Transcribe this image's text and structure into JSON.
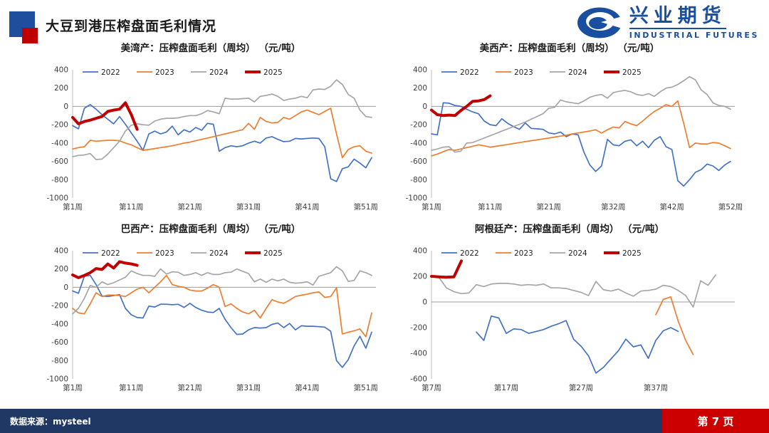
{
  "header": {
    "title": "大豆到港压榨盘面毛利情况",
    "logo_cn": "兴业期货",
    "logo_en": "INDUSTRIAL FUTURES"
  },
  "footer": {
    "source": "数据来源：mysteel",
    "page": "第 7 页"
  },
  "colors": {
    "series": {
      "2022": "#4472C4",
      "2023": "#ED7D31",
      "2024": "#A6A6A6",
      "2025": "#C00000"
    },
    "navy": "#1F3864",
    "accent_red": "#CC0000",
    "logo_blue": "#1A4E9E",
    "header_square_blue": "#1F4E9F",
    "header_square_red": "#C00000",
    "axis_text": "#404040",
    "zero_line": "#9C9C9C",
    "axis_line": "#BFBFBF"
  },
  "chart_data": [
    {
      "id": "us-gulf",
      "type": "line",
      "title": "美湾产：压榨盘面毛利（周均） （元/吨）",
      "ylabel": "元/吨",
      "ylim": [
        -1000,
        400
      ],
      "yticks": [
        400,
        200,
        0,
        -200,
        -400,
        -600,
        -800,
        -1000
      ],
      "xlim": [
        1,
        52
      ],
      "xticks": [
        {
          "week": 1,
          "label": "第1周"
        },
        {
          "week": 11,
          "label": "第11周"
        },
        {
          "week": 21,
          "label": "第21周"
        },
        {
          "week": 31,
          "label": "第31周"
        },
        {
          "week": 41,
          "label": "第41周"
        },
        {
          "week": 51,
          "label": "第51周"
        }
      ],
      "series": [
        {
          "name": "2022",
          "start_week": 1,
          "values": [
            -210,
            -245,
            -20,
            20,
            -30,
            -90,
            -140,
            -190,
            -110,
            -195,
            -290,
            -380,
            -480,
            -300,
            -270,
            -300,
            -280,
            -215,
            -310,
            -255,
            -280,
            -230,
            -260,
            -185,
            -195,
            -490,
            -450,
            -430,
            -440,
            -430,
            -400,
            -380,
            -400,
            -345,
            -330,
            -360,
            -385,
            -380,
            -350,
            -355,
            -350,
            -345,
            -350,
            -440,
            -790,
            -820,
            -680,
            -660,
            -575,
            -620,
            -670,
            -560
          ]
        },
        {
          "name": "2023",
          "start_week": 1,
          "values": [
            -465,
            -450,
            -440,
            -370,
            -380,
            -375,
            -370,
            -370,
            -375,
            -400,
            -420,
            -450,
            -480,
            -470,
            -460,
            -450,
            -440,
            -430,
            -415,
            -400,
            -390,
            -375,
            -360,
            -345,
            -330,
            -315,
            -300,
            -285,
            -270,
            -255,
            -185,
            -250,
            -120,
            -165,
            -180,
            -175,
            -120,
            -140,
            -100,
            -60,
            -40,
            -65,
            -90,
            -55,
            -20,
            -300,
            -560,
            -470,
            -440,
            -430,
            -490,
            -510
          ]
        },
        {
          "name": "2024",
          "start_week": 1,
          "values": [
            -550,
            -535,
            -530,
            -515,
            -580,
            -575,
            -520,
            -450,
            -380,
            -270,
            -205,
            -190,
            -200,
            -205,
            -160,
            -140,
            -130,
            -130,
            -125,
            -110,
            -100,
            -100,
            -80,
            -45,
            -60,
            -80,
            90,
            80,
            80,
            85,
            90,
            50,
            110,
            120,
            135,
            110,
            65,
            80,
            90,
            110,
            95,
            180,
            190,
            185,
            220,
            290,
            240,
            130,
            90,
            -40,
            -110,
            -120
          ]
        },
        {
          "name": "2025",
          "start_week": 1,
          "values": [
            -120,
            -190,
            -165,
            -150,
            -130,
            -110,
            -55,
            -40,
            -30,
            40,
            -90,
            -250
          ]
        }
      ]
    },
    {
      "id": "us-west",
      "type": "line",
      "title": "美西产：压榨盘面毛利（周均） （元/吨）",
      "ylabel": "元/吨",
      "ylim": [
        -1000,
        400
      ],
      "yticks": [
        400,
        200,
        0,
        -200,
        -400,
        -600,
        -800,
        -1000
      ],
      "xlim": [
        1,
        52
      ],
      "xticks": [
        {
          "week": 1,
          "label": "第1周"
        },
        {
          "week": 11,
          "label": "第11周"
        },
        {
          "week": 21,
          "label": "第21周"
        },
        {
          "week": 32,
          "label": "第32周"
        },
        {
          "week": 42,
          "label": "第42周"
        },
        {
          "week": 52,
          "label": "第52周"
        }
      ],
      "series": [
        {
          "name": "2022",
          "start_week": 1,
          "values": [
            -300,
            -310,
            40,
            35,
            10,
            0,
            -30,
            -60,
            -80,
            -160,
            -200,
            -210,
            -135,
            -185,
            -220,
            -250,
            -180,
            -240,
            -245,
            -250,
            -290,
            -300,
            -280,
            -330,
            -300,
            -310,
            -500,
            -640,
            -710,
            -650,
            -360,
            -420,
            -430,
            -380,
            -365,
            -430,
            -380,
            -450,
            -370,
            -330,
            -440,
            -470,
            -810,
            -870,
            -800,
            -720,
            -690,
            -630,
            -650,
            -700,
            -640,
            -600
          ]
        },
        {
          "name": "2023",
          "start_week": 1,
          "values": [
            -540,
            -520,
            -495,
            -470,
            -480,
            -465,
            -450,
            -435,
            -420,
            -430,
            -445,
            -435,
            -425,
            -415,
            -405,
            -395,
            -385,
            -375,
            -365,
            -355,
            -345,
            -335,
            -325,
            -315,
            -300,
            -290,
            -280,
            -268,
            -255,
            -290,
            -255,
            -225,
            -235,
            -165,
            -190,
            -210,
            -160,
            -105,
            -55,
            -20,
            20,
            0,
            60,
            -180,
            -450,
            -400,
            -410,
            -410,
            -395,
            -400,
            -430,
            -460
          ]
        },
        {
          "name": "2024",
          "start_week": 1,
          "values": [
            -480,
            -465,
            -445,
            -440,
            -500,
            -490,
            -400,
            -395,
            -370,
            -345,
            -320,
            -295,
            -270,
            -245,
            -220,
            -195,
            -170,
            -140,
            -110,
            -80,
            -20,
            -10,
            70,
            50,
            40,
            30,
            60,
            100,
            120,
            130,
            90,
            150,
            165,
            175,
            160,
            130,
            120,
            140,
            110,
            160,
            200,
            210,
            240,
            280,
            325,
            290,
            180,
            130,
            40,
            10,
            0,
            -30
          ]
        },
        {
          "name": "2025",
          "start_week": 1,
          "values": [
            -40,
            -90,
            -100,
            -95,
            -100,
            -45,
            0,
            55,
            60,
            75,
            115
          ]
        }
      ]
    },
    {
      "id": "brazil",
      "type": "line",
      "title": "巴西产：压榨盘面毛利（周均） （元/吨）",
      "ylabel": "元/吨",
      "ylim": [
        -1000,
        400
      ],
      "yticks": [
        400,
        200,
        0,
        -200,
        -400,
        -600,
        -800,
        -1000
      ],
      "xlim": [
        1,
        52
      ],
      "xticks": [
        {
          "week": 1,
          "label": "第1周"
        },
        {
          "week": 11,
          "label": "第11周"
        },
        {
          "week": 21,
          "label": "第21周"
        },
        {
          "week": 31,
          "label": "第31周"
        },
        {
          "week": 41,
          "label": "第41周"
        },
        {
          "week": 51,
          "label": "第51周"
        }
      ],
      "series": [
        {
          "name": "2022",
          "start_week": 1,
          "values": [
            -40,
            -65,
            120,
            130,
            30,
            -95,
            -100,
            -90,
            -80,
            -230,
            -300,
            -330,
            -335,
            -205,
            -215,
            -185,
            -185,
            -190,
            -185,
            -220,
            -175,
            -220,
            -250,
            -270,
            -275,
            -230,
            -350,
            -440,
            -515,
            -510,
            -465,
            -440,
            -445,
            -440,
            -405,
            -390,
            -440,
            -395,
            -465,
            -420,
            -425,
            -425,
            -430,
            -435,
            -480,
            -800,
            -875,
            -790,
            -640,
            -535,
            -665,
            -490
          ]
        },
        {
          "name": "2023",
          "start_week": 1,
          "values": [
            -230,
            -280,
            -290,
            -180,
            -60,
            -100,
            -85,
            -85,
            -90,
            -100,
            -60,
            -20,
            0,
            -60,
            0,
            60,
            130,
            30,
            10,
            0,
            -30,
            -40,
            -40,
            -10,
            30,
            0,
            -210,
            -180,
            -230,
            -270,
            -290,
            -250,
            -335,
            -230,
            -135,
            -160,
            -175,
            -140,
            -100,
            -85,
            -75,
            -60,
            -50,
            -110,
            -100,
            -5,
            -510,
            -490,
            -475,
            -455,
            -540,
            -280
          ]
        },
        {
          "name": "2024",
          "start_week": 1,
          "values": [
            -290,
            -230,
            -120,
            20,
            0,
            60,
            30,
            50,
            80,
            110,
            180,
            150,
            130,
            130,
            120,
            200,
            145,
            170,
            165,
            130,
            140,
            160,
            130,
            160,
            140,
            140,
            160,
            165,
            200,
            175,
            150,
            60,
            90,
            55,
            90,
            70,
            90,
            55,
            45,
            50,
            60,
            25,
            120,
            140,
            160,
            225,
            180,
            65,
            75,
            180,
            160,
            130
          ]
        },
        {
          "name": "2025",
          "start_week": 1,
          "values": [
            135,
            105,
            130,
            160,
            205,
            195,
            255,
            210,
            280,
            265,
            255,
            240
          ]
        }
      ]
    },
    {
      "id": "argentina",
      "type": "line",
      "title": "阿根廷产：压榨盘面毛利（周均） （元/吨）",
      "ylabel": "元/吨",
      "ylim": [
        -600,
        400
      ],
      "yticks": [
        400,
        200,
        0,
        -200,
        -400,
        -600
      ],
      "xlim": [
        7,
        47
      ],
      "xticks": [
        {
          "week": 7,
          "label": "第7周"
        },
        {
          "week": 17,
          "label": "第17周"
        },
        {
          "week": 27,
          "label": "第27周"
        },
        {
          "week": 37,
          "label": "第37周"
        }
      ],
      "series": [
        {
          "name": "2022",
          "start_week": 13,
          "values": [
            -235,
            -300,
            -110,
            -125,
            -245,
            -210,
            -215,
            -245,
            -230,
            -215,
            -190,
            -170,
            -145,
            -290,
            -345,
            -420,
            -555,
            -510,
            -445,
            -380,
            -290,
            -350,
            -335,
            -440,
            -300,
            -225,
            -200,
            -230
          ]
        },
        {
          "name": "2023",
          "start_week": 37,
          "values": [
            -100,
            20,
            40,
            -150,
            -300,
            -410
          ]
        },
        {
          "name": "2024",
          "start_week": 7,
          "values": [
            200,
            190,
            110,
            80,
            65,
            70,
            135,
            120,
            140,
            145,
            145,
            140,
            130,
            135,
            130,
            140,
            110,
            110,
            105,
            90,
            75,
            50,
            160,
            95,
            85,
            100,
            70,
            45,
            85,
            90,
            100,
            130,
            120,
            90,
            50,
            -40,
            165,
            130,
            210
          ]
        },
        {
          "name": "2025",
          "start_week": 7,
          "values": [
            200,
            196,
            193,
            196,
            320
          ]
        }
      ]
    }
  ]
}
